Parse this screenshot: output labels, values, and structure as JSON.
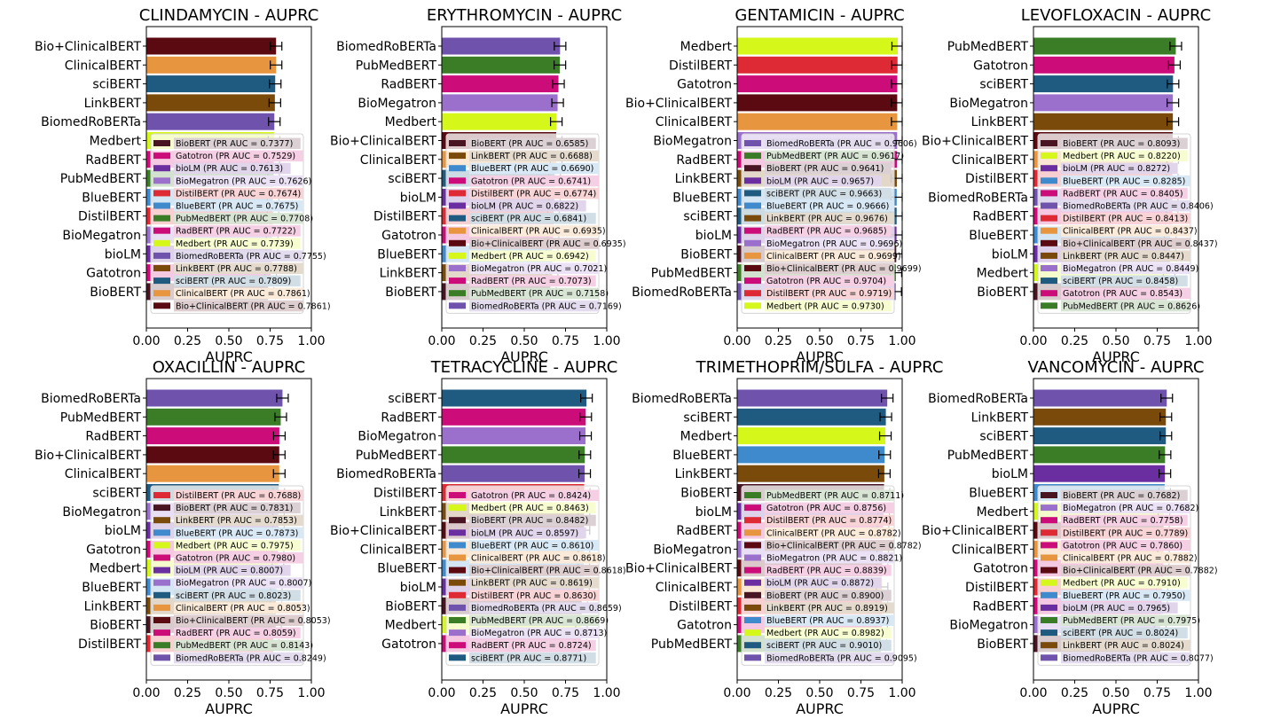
{
  "colors": {
    "Bio+ClinicalBERT": "#5c0a12",
    "ClinicalBERT": "#e8953f",
    "sciBERT": "#1f5a80",
    "LinkBERT": "#7a4a0a",
    "BiomedRoBERTa": "#6e52ac",
    "Medbert": "#d6f71a",
    "Gatotron": "#cc0d79",
    "bioLM": "#6a2ea0",
    "BioMegatron": "#9b6fcc",
    "DistilBERT": "#de2a34",
    "BlueBERT": "#3e8acc",
    "PubMedBERT": "#3a7d26",
    "RadBERT": "#cc0d79",
    "BioBERT": "#4a1522"
  },
  "chart_data": [
    {
      "type": "bar",
      "title": "CLINDAMYCIN - AUPRC",
      "xlabel": "AUPRC",
      "xlim": [
        0,
        1
      ],
      "xticks": [
        "0.00",
        "0.25",
        "0.50",
        "0.75",
        "1.00"
      ],
      "ticklabels": [
        "Bio+ClinicalBERT",
        "ClinicalBERT",
        "sciBERT",
        "LinkBERT",
        "BiomedRoBERTa",
        "Medbert",
        "RadBERT",
        "PubMedBERT",
        "BlueBERT",
        "DistilBERT",
        "BioMegatron",
        "bioLM",
        "Gatotron",
        "BioBERT"
      ],
      "legend": [
        {
          "label": "BioBERT (PR AUC = 0.7377)",
          "model": "BioBERT",
          "value": 0.7377
        },
        {
          "label": "Gatotron (PR AUC = 0.7529)",
          "model": "Gatotron",
          "value": 0.7529
        },
        {
          "label": "bioLM (PR AUC = 0.7613)",
          "model": "bioLM",
          "value": 0.7613
        },
        {
          "label": "BioMegatron (PR AUC = 0.7626)",
          "model": "BioMegatron",
          "value": 0.7626
        },
        {
          "label": "DistilBERT (PR AUC = 0.7674)",
          "model": "DistilBERT",
          "value": 0.7674
        },
        {
          "label": "BlueBERT (PR AUC = 0.7675)",
          "model": "BlueBERT",
          "value": 0.7675
        },
        {
          "label": "PubMedBERT (PR AUC = 0.7708)",
          "model": "PubMedBERT",
          "value": 0.7708
        },
        {
          "label": "RadBERT (PR AUC = 0.7722)",
          "model": "RadBERT",
          "value": 0.7722
        },
        {
          "label": "Medbert (PR AUC = 0.7739)",
          "model": "Medbert",
          "value": 0.7739
        },
        {
          "label": "BiomedRoBERTa (PR AUC = 0.7755)",
          "model": "BiomedRoBERTa",
          "value": 0.7755
        },
        {
          "label": "LinkBERT (PR AUC = 0.7788)",
          "model": "LinkBERT",
          "value": 0.7788
        },
        {
          "label": "sciBERT (PR AUC = 0.7809)",
          "model": "sciBERT",
          "value": 0.7809
        },
        {
          "label": "ClinicalBERT (PR AUC = 0.7861)",
          "model": "ClinicalBERT",
          "value": 0.7861
        },
        {
          "label": "Bio+ClinicalBERT (PR AUC = 0.7861)",
          "model": "Bio+ClinicalBERT",
          "value": 0.7861
        }
      ]
    },
    {
      "type": "bar",
      "title": "ERYTHROMYCIN - AUPRC",
      "xlabel": "AUPRC",
      "xlim": [
        0,
        1
      ],
      "xticks": [
        "0.00",
        "0.25",
        "0.50",
        "0.75",
        "1.00"
      ],
      "ticklabels": [
        "BiomedRoBERTa",
        "PubMedBERT",
        "RadBERT",
        "BioMegatron",
        "Medbert",
        "Bio+ClinicalBERT",
        "ClinicalBERT",
        "sciBERT",
        "bioLM",
        "DistilBERT",
        "Gatotron",
        "BlueBERT",
        "LinkBERT",
        "BioBERT"
      ],
      "legend": [
        {
          "label": "BioBERT (PR AUC = 0.6585)",
          "model": "BioBERT",
          "value": 0.6585
        },
        {
          "label": "LinkBERT (PR AUC = 0.6688)",
          "model": "LinkBERT",
          "value": 0.6688
        },
        {
          "label": "BlueBERT (PR AUC = 0.6690)",
          "model": "BlueBERT",
          "value": 0.669
        },
        {
          "label": "Gatotron (PR AUC = 0.6741)",
          "model": "Gatotron",
          "value": 0.6741
        },
        {
          "label": "DistilBERT (PR AUC = 0.6774)",
          "model": "DistilBERT",
          "value": 0.6774
        },
        {
          "label": "bioLM (PR AUC = 0.6822)",
          "model": "bioLM",
          "value": 0.6822
        },
        {
          "label": "sciBERT (PR AUC = 0.6841)",
          "model": "sciBERT",
          "value": 0.6841
        },
        {
          "label": "ClinicalBERT (PR AUC = 0.6935)",
          "model": "ClinicalBERT",
          "value": 0.6935
        },
        {
          "label": "Bio+ClinicalBERT (PR AUC = 0.6935)",
          "model": "Bio+ClinicalBERT",
          "value": 0.6935
        },
        {
          "label": "Medbert (PR AUC = 0.6942)",
          "model": "Medbert",
          "value": 0.6942
        },
        {
          "label": "BioMegatron (PR AUC = 0.7021)",
          "model": "BioMegatron",
          "value": 0.7021
        },
        {
          "label": "RadBERT (PR AUC = 0.7073)",
          "model": "RadBERT",
          "value": 0.7073
        },
        {
          "label": "PubMedBERT (PR AUC = 0.7158)",
          "model": "PubMedBERT",
          "value": 0.7158
        },
        {
          "label": "BiomedRoBERTa (PR AUC = 0.7169)",
          "model": "BiomedRoBERTa",
          "value": 0.7169
        }
      ]
    },
    {
      "type": "bar",
      "title": "GENTAMICIN - AUPRC",
      "xlabel": "AUPRC",
      "xlim": [
        0,
        1
      ],
      "xticks": [
        "0.00",
        "0.25",
        "0.50",
        "0.75",
        "1.00"
      ],
      "ticklabels": [
        "Medbert",
        "DistilBERT",
        "Gatotron",
        "Bio+ClinicalBERT",
        "ClinicalBERT",
        "BioMegatron",
        "RadBERT",
        "LinkBERT",
        "BlueBERT",
        "sciBERT",
        "bioLM",
        "BioBERT",
        "PubMedBERT",
        "BiomedRoBERTa"
      ],
      "legend": [
        {
          "label": "BiomedRoBERTa (PR AUC = 0.9606)",
          "model": "BiomedRoBERTa",
          "value": 0.9606
        },
        {
          "label": "PubMedBERT (PR AUC = 0.9617)",
          "model": "PubMedBERT",
          "value": 0.9617
        },
        {
          "label": "BioBERT (PR AUC = 0.9641)",
          "model": "BioBERT",
          "value": 0.9641
        },
        {
          "label": "bioLM (PR AUC = 0.9657)",
          "model": "bioLM",
          "value": 0.9657
        },
        {
          "label": "sciBERT (PR AUC = 0.9663)",
          "model": "sciBERT",
          "value": 0.9663
        },
        {
          "label": "BlueBERT (PR AUC = 0.9666)",
          "model": "BlueBERT",
          "value": 0.9666
        },
        {
          "label": "LinkBERT (PR AUC = 0.9676)",
          "model": "LinkBERT",
          "value": 0.9676
        },
        {
          "label": "RadBERT (PR AUC = 0.9685)",
          "model": "RadBERT",
          "value": 0.9685
        },
        {
          "label": "BioMegatron (PR AUC = 0.9696)",
          "model": "BioMegatron",
          "value": 0.9696
        },
        {
          "label": "ClinicalBERT (PR AUC = 0.9699)",
          "model": "ClinicalBERT",
          "value": 0.9699
        },
        {
          "label": "Bio+ClinicalBERT (PR AUC = 0.9699)",
          "model": "Bio+ClinicalBERT",
          "value": 0.9699
        },
        {
          "label": "Gatotron (PR AUC = 0.9704)",
          "model": "Gatotron",
          "value": 0.9704
        },
        {
          "label": "DistilBERT (PR AUC = 0.9719)",
          "model": "DistilBERT",
          "value": 0.9719
        },
        {
          "label": "Medbert (PR AUC = 0.9730)",
          "model": "Medbert",
          "value": 0.973
        }
      ]
    },
    {
      "type": "bar",
      "title": "LEVOFLOXACIN - AUPRC",
      "xlabel": "AUPRC",
      "xlim": [
        0,
        1
      ],
      "xticks": [
        "0.00",
        "0.25",
        "0.50",
        "0.75",
        "1.00"
      ],
      "ticklabels": [
        "PubMedBERT",
        "Gatotron",
        "sciBERT",
        "BioMegatron",
        "LinkBERT",
        "Bio+ClinicalBERT",
        "ClinicalBERT",
        "DistilBERT",
        "BiomedRoBERTa",
        "RadBERT",
        "BlueBERT",
        "bioLM",
        "Medbert",
        "BioBERT"
      ],
      "legend": [
        {
          "label": "BioBERT (PR AUC = 0.8093)",
          "model": "BioBERT",
          "value": 0.8093
        },
        {
          "label": "Medbert (PR AUC = 0.8220)",
          "model": "Medbert",
          "value": 0.822
        },
        {
          "label": "bioLM (PR AUC = 0.8272)",
          "model": "bioLM",
          "value": 0.8272
        },
        {
          "label": "BlueBERT (PR AUC = 0.8285)",
          "model": "BlueBERT",
          "value": 0.8285
        },
        {
          "label": "RadBERT (PR AUC = 0.8405)",
          "model": "RadBERT",
          "value": 0.8405
        },
        {
          "label": "BiomedRoBERTa (PR AUC = 0.8406)",
          "model": "BiomedRoBERTa",
          "value": 0.8406
        },
        {
          "label": "DistilBERT (PR AUC = 0.8413)",
          "model": "DistilBERT",
          "value": 0.8413
        },
        {
          "label": "ClinicalBERT (PR AUC = 0.8437)",
          "model": "ClinicalBERT",
          "value": 0.8437
        },
        {
          "label": "Bio+ClinicalBERT (PR AUC = 0.8437)",
          "model": "Bio+ClinicalBERT",
          "value": 0.8437
        },
        {
          "label": "LinkBERT (PR AUC = 0.8447)",
          "model": "LinkBERT",
          "value": 0.8447
        },
        {
          "label": "BioMegatron (PR AUC = 0.8449)",
          "model": "BioMegatron",
          "value": 0.8449
        },
        {
          "label": "sciBERT (PR AUC = 0.8458)",
          "model": "sciBERT",
          "value": 0.8458
        },
        {
          "label": "Gatotron (PR AUC = 0.8543)",
          "model": "Gatotron",
          "value": 0.8543
        },
        {
          "label": "PubMedBERT (PR AUC = 0.8626)",
          "model": "PubMedBERT",
          "value": 0.8626
        }
      ]
    },
    {
      "type": "bar",
      "title": "OXACILLIN - AUPRC",
      "xlabel": "AUPRC",
      "xlim": [
        0,
        1
      ],
      "xticks": [
        "0.00",
        "0.25",
        "0.50",
        "0.75",
        "1.00"
      ],
      "ticklabels": [
        "BiomedRoBERTa",
        "PubMedBERT",
        "RadBERT",
        "Bio+ClinicalBERT",
        "ClinicalBERT",
        "sciBERT",
        "BioMegatron",
        "bioLM",
        "Gatotron",
        "Medbert",
        "BlueBERT",
        "LinkBERT",
        "BioBERT",
        "DistilBERT"
      ],
      "legend": [
        {
          "label": "DistilBERT (PR AUC = 0.7688)",
          "model": "DistilBERT",
          "value": 0.7688
        },
        {
          "label": "BioBERT (PR AUC = 0.7831)",
          "model": "BioBERT",
          "value": 0.7831
        },
        {
          "label": "LinkBERT (PR AUC = 0.7853)",
          "model": "LinkBERT",
          "value": 0.7853
        },
        {
          "label": "BlueBERT (PR AUC = 0.7873)",
          "model": "BlueBERT",
          "value": 0.7873
        },
        {
          "label": "Medbert (PR AUC = 0.7975)",
          "model": "Medbert",
          "value": 0.7975
        },
        {
          "label": "Gatotron (PR AUC = 0.7980)",
          "model": "Gatotron",
          "value": 0.798
        },
        {
          "label": "bioLM (PR AUC = 0.8007)",
          "model": "bioLM",
          "value": 0.8007
        },
        {
          "label": "BioMegatron (PR AUC = 0.8007)",
          "model": "BioMegatron",
          "value": 0.8007
        },
        {
          "label": "sciBERT (PR AUC = 0.8023)",
          "model": "sciBERT",
          "value": 0.8023
        },
        {
          "label": "ClinicalBERT (PR AUC = 0.8053)",
          "model": "ClinicalBERT",
          "value": 0.8053
        },
        {
          "label": "Bio+ClinicalBERT (PR AUC = 0.8053)",
          "model": "Bio+ClinicalBERT",
          "value": 0.8053
        },
        {
          "label": "RadBERT (PR AUC = 0.8059)",
          "model": "RadBERT",
          "value": 0.8059
        },
        {
          "label": "PubMedBERT (PR AUC = 0.8143)",
          "model": "PubMedBERT",
          "value": 0.8143
        },
        {
          "label": "BiomedRoBERTa (PR AUC = 0.8249)",
          "model": "BiomedRoBERTa",
          "value": 0.8249
        }
      ]
    },
    {
      "type": "bar",
      "title": "TETRACYCLINE - AUPRC",
      "xlabel": "AUPRC",
      "xlim": [
        0,
        1
      ],
      "xticks": [
        "0.00",
        "0.25",
        "0.50",
        "0.75",
        "1.00"
      ],
      "ticklabels": [
        "sciBERT",
        "RadBERT",
        "BioMegatron",
        "PubMedBERT",
        "BiomedRoBERTa",
        "DistilBERT",
        "LinkBERT",
        "Bio+ClinicalBERT",
        "ClinicalBERT",
        "BlueBERT",
        "bioLM",
        "BioBERT",
        "Medbert",
        "Gatotron"
      ],
      "legend": [
        {
          "label": "Gatotron (PR AUC = 0.8424)",
          "model": "Gatotron",
          "value": 0.8424
        },
        {
          "label": "Medbert (PR AUC = 0.8463)",
          "model": "Medbert",
          "value": 0.8463
        },
        {
          "label": "BioBERT (PR AUC = 0.8482)",
          "model": "BioBERT",
          "value": 0.8482
        },
        {
          "label": "bioLM (PR AUC = 0.8597)",
          "model": "bioLM",
          "value": 0.8597
        },
        {
          "label": "BlueBERT (PR AUC = 0.8610)",
          "model": "BlueBERT",
          "value": 0.861
        },
        {
          "label": "ClinicalBERT (PR AUC = 0.8618)",
          "model": "ClinicalBERT",
          "value": 0.8618
        },
        {
          "label": "Bio+ClinicalBERT (PR AUC = 0.8618)",
          "model": "Bio+ClinicalBERT",
          "value": 0.8618
        },
        {
          "label": "LinkBERT (PR AUC = 0.8619)",
          "model": "LinkBERT",
          "value": 0.8619
        },
        {
          "label": "DistilBERT (PR AUC = 0.8630)",
          "model": "DistilBERT",
          "value": 0.863
        },
        {
          "label": "BiomedRoBERTa (PR AUC = 0.8659)",
          "model": "BiomedRoBERTa",
          "value": 0.8659
        },
        {
          "label": "PubMedBERT (PR AUC = 0.8669)",
          "model": "PubMedBERT",
          "value": 0.8669
        },
        {
          "label": "BioMegatron (PR AUC = 0.8713)",
          "model": "BioMegatron",
          "value": 0.8713
        },
        {
          "label": "RadBERT (PR AUC = 0.8724)",
          "model": "RadBERT",
          "value": 0.8724
        },
        {
          "label": "sciBERT (PR AUC = 0.8771)",
          "model": "sciBERT",
          "value": 0.8771
        }
      ]
    },
    {
      "type": "bar",
      "title": "TRIMETHOPRIM/SULFA - AUPRC",
      "xlabel": "AUPRC",
      "xlim": [
        0,
        1
      ],
      "xticks": [
        "0.00",
        "0.25",
        "0.50",
        "0.75",
        "1.00"
      ],
      "ticklabels": [
        "BiomedRoBERTa",
        "sciBERT",
        "Medbert",
        "BlueBERT",
        "LinkBERT",
        "BioBERT",
        "bioLM",
        "RadBERT",
        "BioMegatron",
        "Bio+ClinicalBERT",
        "ClinicalBERT",
        "DistilBERT",
        "Gatotron",
        "PubMedBERT"
      ],
      "legend": [
        {
          "label": "PubMedBERT (PR AUC = 0.8711)",
          "model": "PubMedBERT",
          "value": 0.8711
        },
        {
          "label": "Gatotron (PR AUC = 0.8756)",
          "model": "Gatotron",
          "value": 0.8756
        },
        {
          "label": "DistilBERT (PR AUC = 0.8774)",
          "model": "DistilBERT",
          "value": 0.8774
        },
        {
          "label": "ClinicalBERT (PR AUC = 0.8782)",
          "model": "ClinicalBERT",
          "value": 0.8782
        },
        {
          "label": "Bio+ClinicalBERT (PR AUC = 0.8782)",
          "model": "Bio+ClinicalBERT",
          "value": 0.8782
        },
        {
          "label": "BioMegatron (PR AUC = 0.8821)",
          "model": "BioMegatron",
          "value": 0.8821
        },
        {
          "label": "RadBERT (PR AUC = 0.8839)",
          "model": "RadBERT",
          "value": 0.8839
        },
        {
          "label": "bioLM (PR AUC = 0.8872)",
          "model": "bioLM",
          "value": 0.8872
        },
        {
          "label": "BioBERT (PR AUC = 0.8900)",
          "model": "BioBERT",
          "value": 0.89
        },
        {
          "label": "LinkBERT (PR AUC = 0.8919)",
          "model": "LinkBERT",
          "value": 0.8919
        },
        {
          "label": "BlueBERT (PR AUC = 0.8937)",
          "model": "BlueBERT",
          "value": 0.8937
        },
        {
          "label": "Medbert (PR AUC = 0.8982)",
          "model": "Medbert",
          "value": 0.8982
        },
        {
          "label": "sciBERT (PR AUC = 0.9010)",
          "model": "sciBERT",
          "value": 0.901
        },
        {
          "label": "BiomedRoBERTa (PR AUC = 0.9095)",
          "model": "BiomedRoBERTa",
          "value": 0.9095
        }
      ]
    },
    {
      "type": "bar",
      "title": "VANCOMYCIN - AUPRC",
      "xlabel": "AUPRC",
      "xlim": [
        0,
        1
      ],
      "xticks": [
        "0.00",
        "0.25",
        "0.50",
        "0.75",
        "1.00"
      ],
      "ticklabels": [
        "BiomedRoBERTa",
        "LinkBERT",
        "sciBERT",
        "PubMedBERT",
        "bioLM",
        "BlueBERT",
        "Medbert",
        "Bio+ClinicalBERT",
        "ClinicalBERT",
        "Gatotron",
        "DistilBERT",
        "RadBERT",
        "BioMegatron",
        "BioBERT"
      ],
      "legend": [
        {
          "label": "BioBERT (PR AUC = 0.7682)",
          "model": "BioBERT",
          "value": 0.7682
        },
        {
          "label": "BioMegatron (PR AUC = 0.7682)",
          "model": "BioMegatron",
          "value": 0.7682
        },
        {
          "label": "RadBERT (PR AUC = 0.7758)",
          "model": "RadBERT",
          "value": 0.7758
        },
        {
          "label": "DistilBERT (PR AUC = 0.7789)",
          "model": "DistilBERT",
          "value": 0.7789
        },
        {
          "label": "Gatotron (PR AUC = 0.7860)",
          "model": "Gatotron",
          "value": 0.786
        },
        {
          "label": "ClinicalBERT (PR AUC = 0.7882)",
          "model": "ClinicalBERT",
          "value": 0.7882
        },
        {
          "label": "Bio+ClinicalBERT (PR AUC = 0.7882)",
          "model": "Bio+ClinicalBERT",
          "value": 0.7882
        },
        {
          "label": "Medbert (PR AUC = 0.7910)",
          "model": "Medbert",
          "value": 0.791
        },
        {
          "label": "BlueBERT (PR AUC = 0.7950)",
          "model": "BlueBERT",
          "value": 0.795
        },
        {
          "label": "bioLM (PR AUC = 0.7965)",
          "model": "bioLM",
          "value": 0.7965
        },
        {
          "label": "PubMedBERT (PR AUC = 0.7975)",
          "model": "PubMedBERT",
          "value": 0.7975
        },
        {
          "label": "sciBERT (PR AUC = 0.8024)",
          "model": "sciBERT",
          "value": 0.8024
        },
        {
          "label": "LinkBERT (PR AUC = 0.8024)",
          "model": "LinkBERT",
          "value": 0.8024
        },
        {
          "label": "BiomedRoBERTa (PR AUC = 0.8077)",
          "model": "BiomedRoBERTa",
          "value": 0.8077
        }
      ]
    }
  ]
}
